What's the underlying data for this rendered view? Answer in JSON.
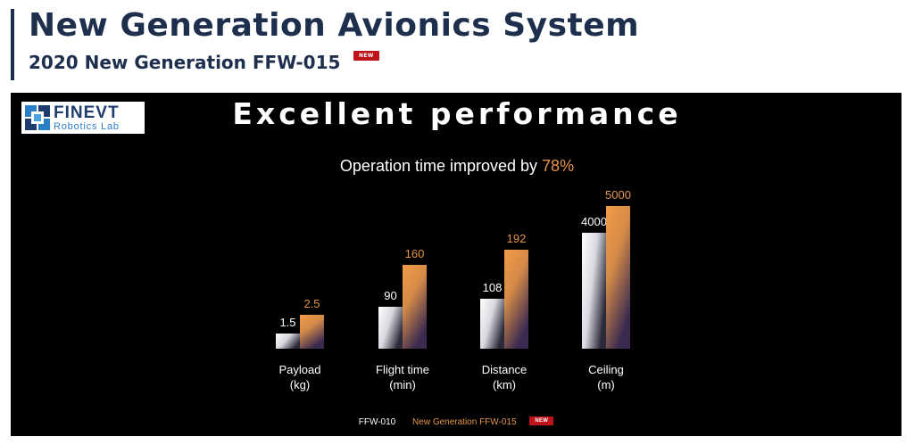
{
  "header": {
    "title": "New Generation Avionics System",
    "subtitle": "2020 New Generation FFW-015",
    "badge": "NEW"
  },
  "logo": {
    "name": "FINEVT",
    "sub": "Robotics Lab"
  },
  "panel": {
    "heading": "Excellent performance",
    "improvement_text": "Operation time improved by",
    "improvement_value": "78%"
  },
  "colors": {
    "title": "#1e2f4d",
    "accent": "#1e2f4d",
    "badge": "#c0121a",
    "new_series": "#e5954a",
    "panel_bg": "#000000"
  },
  "chart_data": {
    "type": "bar",
    "categories": [
      "Payload\n(kg)",
      "Flight time\n(min)",
      "Distance\n(km)",
      "Ceiling\n(m)"
    ],
    "series": [
      {
        "name": "FFW-010",
        "values": [
          1.5,
          90,
          108,
          4000
        ],
        "labels": [
          "1.5",
          "90",
          "108",
          "4000"
        ]
      },
      {
        "name": "New Generation FFW-015",
        "values": [
          2.5,
          160,
          192,
          5000
        ],
        "labels": [
          "2.5",
          "160",
          "192",
          "5000"
        ]
      }
    ],
    "title": "",
    "xlabel": "",
    "ylabel": "",
    "legend": "bottom",
    "grid": false,
    "scale": "independent per category",
    "legend_badge": "NEW"
  }
}
